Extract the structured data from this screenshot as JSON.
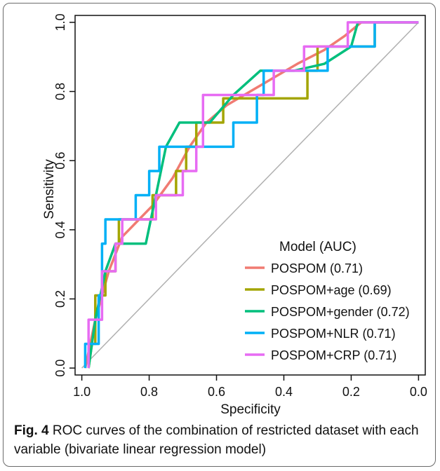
{
  "caption": {
    "label": "Fig. 4",
    "text": " ROC curves of the combination of restricted dataset with each variable (bivariate linear regression model)"
  },
  "chart_data": {
    "type": "line",
    "xlabel": "Specificity",
    "ylabel": "Sensitivity",
    "xlim": [
      1.0,
      0.0
    ],
    "ylim": [
      0.0,
      1.0
    ],
    "x_reversed": true,
    "xticks": [
      "1.0",
      "0.8",
      "0.6",
      "0.4",
      "0.2",
      "0.0"
    ],
    "yticks": [
      "0.0",
      "0.2",
      "0.4",
      "0.6",
      "0.8",
      "1.0"
    ],
    "grid": false,
    "legend": {
      "title": "Model (AUC)",
      "position": "bottom-right"
    },
    "reference_line": {
      "color": "#b0b0b0"
    },
    "series": [
      {
        "name": "POSPOM (0.71)",
        "color": "#f07b72",
        "points": [
          [
            0.99,
            0.0
          ],
          [
            0.96,
            0.14
          ],
          [
            0.92,
            0.28
          ],
          [
            0.88,
            0.38
          ],
          [
            0.84,
            0.42
          ],
          [
            0.79,
            0.47
          ],
          [
            0.73,
            0.55
          ],
          [
            0.68,
            0.64
          ],
          [
            0.63,
            0.71
          ],
          [
            0.57,
            0.76
          ],
          [
            0.5,
            0.8
          ],
          [
            0.43,
            0.84
          ],
          [
            0.36,
            0.88
          ],
          [
            0.28,
            0.92
          ],
          [
            0.22,
            0.96
          ],
          [
            0.17,
            1.0
          ],
          [
            0.0,
            1.0
          ]
        ]
      },
      {
        "name": "POSPOM+age (0.69)",
        "color": "#a3a500",
        "points": [
          [
            0.98,
            0.0
          ],
          [
            0.97,
            0.07
          ],
          [
            0.96,
            0.07
          ],
          [
            0.96,
            0.21
          ],
          [
            0.93,
            0.21
          ],
          [
            0.93,
            0.28
          ],
          [
            0.9,
            0.28
          ],
          [
            0.9,
            0.36
          ],
          [
            0.89,
            0.36
          ],
          [
            0.89,
            0.43
          ],
          [
            0.79,
            0.43
          ],
          [
            0.79,
            0.5
          ],
          [
            0.72,
            0.5
          ],
          [
            0.72,
            0.57
          ],
          [
            0.69,
            0.57
          ],
          [
            0.69,
            0.64
          ],
          [
            0.66,
            0.64
          ],
          [
            0.66,
            0.71
          ],
          [
            0.58,
            0.71
          ],
          [
            0.58,
            0.78
          ],
          [
            0.42,
            0.78
          ],
          [
            0.33,
            0.78
          ],
          [
            0.33,
            0.86
          ],
          [
            0.3,
            0.86
          ],
          [
            0.3,
            0.93
          ],
          [
            0.13,
            0.93
          ],
          [
            0.13,
            1.0
          ],
          [
            0.12,
            1.0
          ],
          [
            0.0,
            1.0
          ]
        ]
      },
      {
        "name": "POSPOM+gender (0.72)",
        "color": "#00bf7d",
        "points": [
          [
            0.98,
            0.0
          ],
          [
            0.96,
            0.14
          ],
          [
            0.93,
            0.28
          ],
          [
            0.9,
            0.36
          ],
          [
            0.81,
            0.36
          ],
          [
            0.78,
            0.5
          ],
          [
            0.75,
            0.64
          ],
          [
            0.71,
            0.71
          ],
          [
            0.62,
            0.71
          ],
          [
            0.55,
            0.79
          ],
          [
            0.47,
            0.86
          ],
          [
            0.37,
            0.86
          ],
          [
            0.28,
            0.88
          ],
          [
            0.2,
            0.93
          ],
          [
            0.18,
            1.0
          ],
          [
            0.0,
            1.0
          ]
        ]
      },
      {
        "name": "POSPOM+NLR (0.71)",
        "color": "#00b0f6",
        "points": [
          [
            0.99,
            0.0
          ],
          [
            0.99,
            0.07
          ],
          [
            0.95,
            0.07
          ],
          [
            0.95,
            0.21
          ],
          [
            0.94,
            0.21
          ],
          [
            0.94,
            0.36
          ],
          [
            0.93,
            0.36
          ],
          [
            0.93,
            0.43
          ],
          [
            0.84,
            0.43
          ],
          [
            0.84,
            0.5
          ],
          [
            0.8,
            0.5
          ],
          [
            0.8,
            0.57
          ],
          [
            0.77,
            0.57
          ],
          [
            0.77,
            0.64
          ],
          [
            0.55,
            0.64
          ],
          [
            0.55,
            0.71
          ],
          [
            0.48,
            0.71
          ],
          [
            0.48,
            0.79
          ],
          [
            0.46,
            0.79
          ],
          [
            0.46,
            0.86
          ],
          [
            0.27,
            0.86
          ],
          [
            0.27,
            0.93
          ],
          [
            0.13,
            0.93
          ],
          [
            0.13,
            1.0
          ],
          [
            0.0,
            1.0
          ]
        ]
      },
      {
        "name": "POSPOM+CRP (0.71)",
        "color": "#e76bf3",
        "points": [
          [
            0.98,
            0.0
          ],
          [
            0.98,
            0.14
          ],
          [
            0.94,
            0.14
          ],
          [
            0.94,
            0.28
          ],
          [
            0.9,
            0.28
          ],
          [
            0.9,
            0.36
          ],
          [
            0.88,
            0.36
          ],
          [
            0.88,
            0.43
          ],
          [
            0.78,
            0.43
          ],
          [
            0.78,
            0.5
          ],
          [
            0.7,
            0.5
          ],
          [
            0.7,
            0.57
          ],
          [
            0.66,
            0.57
          ],
          [
            0.66,
            0.64
          ],
          [
            0.64,
            0.64
          ],
          [
            0.64,
            0.79
          ],
          [
            0.43,
            0.79
          ],
          [
            0.43,
            0.86
          ],
          [
            0.34,
            0.86
          ],
          [
            0.34,
            0.93
          ],
          [
            0.21,
            0.93
          ],
          [
            0.21,
            1.0
          ],
          [
            0.0,
            1.0
          ]
        ]
      }
    ]
  }
}
